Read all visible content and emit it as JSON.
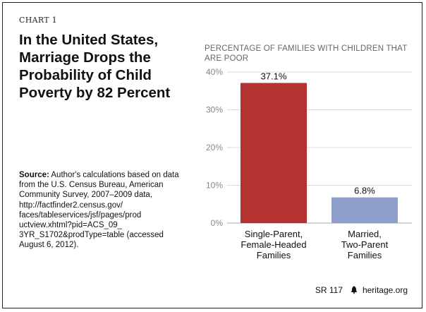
{
  "chart_label": "CHART 1",
  "headline": "In the United States, Marriage Drops the Probability of Child Poverty by 82 Percent",
  "source": {
    "label": "Source:",
    "text": " Author's calculations based on data from the U.S. Census Bureau, American Community Survey, 2007–2009 data, http://factfinder2.census.gov/ faces/tableservices/jsf/pages/prod uctview.xhtml?pid=ACS_09_ 3YR_S1702&prodType=table (accessed August 6, 2012)."
  },
  "footer": {
    "report": "SR 117",
    "site": "heritage.org"
  },
  "colors": {
    "bar1": "#B53232",
    "bar2": "#8E9FCB",
    "grid": "#d8d8d8",
    "tick": "#888888"
  },
  "chart_data": {
    "type": "bar",
    "title": "PERCENTAGE OF FAMILIES WITH CHILDREN THAT ARE POOR",
    "categories": [
      [
        "Single-Parent,",
        "Female-Headed",
        "Families"
      ],
      [
        "Married,",
        "Two-Parent",
        "Families"
      ]
    ],
    "values": [
      37.1,
      6.8
    ],
    "data_labels": [
      "37.1%",
      "6.8%"
    ],
    "yticks": [
      "0%",
      "10%",
      "20%",
      "30%",
      "40%"
    ],
    "ylim": [
      0,
      40
    ],
    "grid": true
  }
}
